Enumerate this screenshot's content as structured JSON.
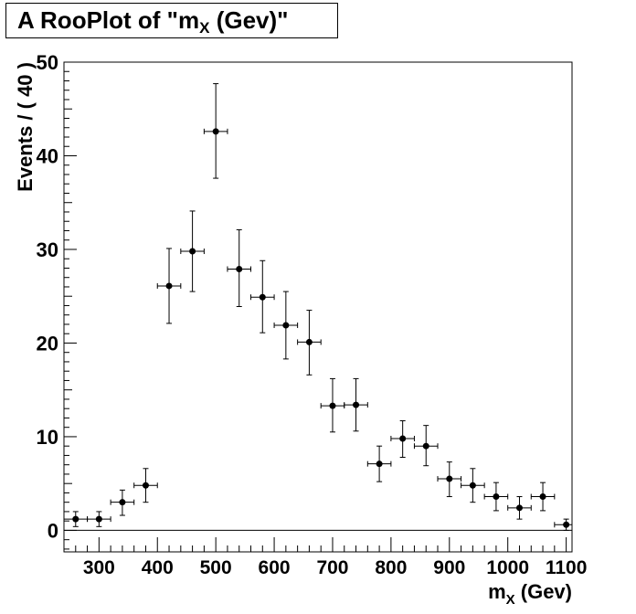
{
  "title": {
    "prefix": "A RooPlot of \"m",
    "sub": "X",
    "suffix": " (Gev)\""
  },
  "chart_data": {
    "type": "scatter",
    "style": "histogram points with error bars",
    "title": "A RooPlot of \"mX (Gev)\"",
    "xlabel": {
      "main": "m",
      "sub": "X",
      "suffix": " (Gev)"
    },
    "ylabel": "Events / ( 40 )",
    "xlim": [
      240,
      1110
    ],
    "ylim": [
      -2.3,
      50
    ],
    "x_ticks": [
      300,
      400,
      500,
      600,
      700,
      800,
      900,
      1000,
      1100
    ],
    "y_ticks": [
      0,
      10,
      20,
      30,
      40,
      50
    ],
    "bin_width": 40,
    "points": [
      {
        "x": 260,
        "y": 1.2,
        "err_low": 0.8,
        "err_high": 0.8
      },
      {
        "x": 300,
        "y": 1.2,
        "err_low": 0.8,
        "err_high": 0.8
      },
      {
        "x": 340,
        "y": 3.0,
        "err_low": 1.4,
        "err_high": 1.3
      },
      {
        "x": 380,
        "y": 4.8,
        "err_low": 1.8,
        "err_high": 1.8
      },
      {
        "x": 420,
        "y": 26.1,
        "err_low": 4.0,
        "err_high": 4.0
      },
      {
        "x": 460,
        "y": 29.8,
        "err_low": 4.3,
        "err_high": 4.3
      },
      {
        "x": 500,
        "y": 42.6,
        "err_low": 5.0,
        "err_high": 5.1
      },
      {
        "x": 540,
        "y": 27.9,
        "err_low": 4.0,
        "err_high": 4.2
      },
      {
        "x": 580,
        "y": 24.9,
        "err_low": 3.8,
        "err_high": 3.9
      },
      {
        "x": 620,
        "y": 21.9,
        "err_low": 3.6,
        "err_high": 3.6
      },
      {
        "x": 660,
        "y": 20.1,
        "err_low": 3.5,
        "err_high": 3.4
      },
      {
        "x": 700,
        "y": 13.3,
        "err_low": 2.8,
        "err_high": 2.9
      },
      {
        "x": 740,
        "y": 13.4,
        "err_low": 2.8,
        "err_high": 2.8
      },
      {
        "x": 780,
        "y": 7.1,
        "err_low": 1.9,
        "err_high": 1.9
      },
      {
        "x": 820,
        "y": 9.8,
        "err_low": 2.0,
        "err_high": 1.9
      },
      {
        "x": 860,
        "y": 9.0,
        "err_low": 2.1,
        "err_high": 2.2
      },
      {
        "x": 900,
        "y": 5.5,
        "err_low": 1.9,
        "err_high": 1.8
      },
      {
        "x": 940,
        "y": 4.8,
        "err_low": 1.8,
        "err_high": 1.8
      },
      {
        "x": 980,
        "y": 3.6,
        "err_low": 1.5,
        "err_high": 1.5
      },
      {
        "x": 1020,
        "y": 2.4,
        "err_low": 1.2,
        "err_high": 1.2
      },
      {
        "x": 1060,
        "y": 3.6,
        "err_low": 1.5,
        "err_high": 1.5
      },
      {
        "x": 1100,
        "y": 0.6,
        "err_low": 0.6,
        "err_high": 0.6
      }
    ]
  }
}
